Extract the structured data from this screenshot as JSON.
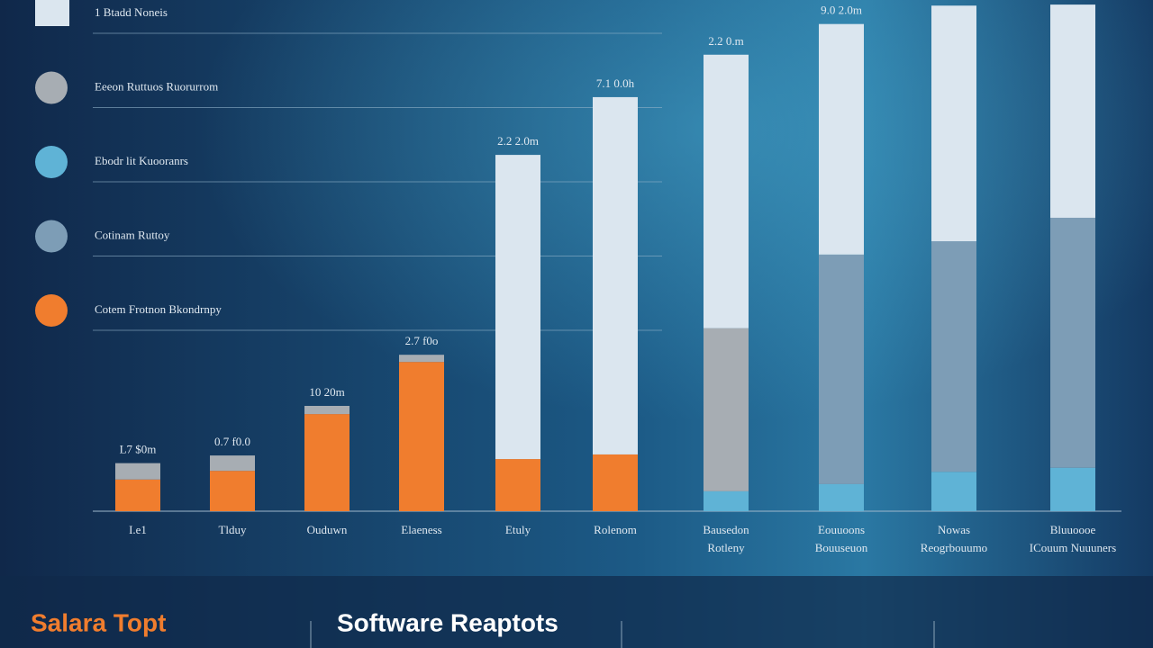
{
  "chart_data": {
    "type": "stacked_bar",
    "title": "Software Reaptots",
    "subtitle": "Salara Topt",
    "categories": [
      [
        "I.e1"
      ],
      [
        "Tlduy"
      ],
      [
        "Ouduwn"
      ],
      [
        "Elaeness"
      ],
      [
        "Etuly"
      ],
      [
        "Rolenom"
      ],
      [
        "Bausedon",
        "Rotleny"
      ],
      [
        "Eouuoons",
        "Bouuseuon"
      ],
      [
        "Nowas",
        "Reogrbouumo"
      ],
      [
        "Bluuoooe",
        "ICouum Nuuuners"
      ]
    ],
    "bar_labels": [
      "L7 $0m",
      "0.7 f0.0",
      "10 20m",
      "2.7 f0o",
      "2.2 2.0m",
      "7.1 0.0h",
      "2.2 0.m",
      "9.0 2.0m",
      null,
      null
    ],
    "series": [
      {
        "name": "Cotem Frotnon Bkondrnpy",
        "color": "#f07d2e",
        "values": [
          6.2,
          7.9,
          19,
          29.2,
          10.2,
          11.1,
          0,
          0,
          0,
          0
        ]
      },
      {
        "name": "Ebodr lit Kuooranrs",
        "color": "#5fb3d6",
        "values": [
          0,
          0,
          0,
          0,
          0,
          0,
          3.9,
          5.3,
          7.7,
          8.5
        ]
      },
      {
        "name": "Eeeon Ruttuos Ruorurrom",
        "color": "#a7adb3",
        "values": [
          3.2,
          3,
          1.6,
          1.4,
          0,
          0,
          31.9,
          0,
          0,
          0
        ]
      },
      {
        "name": "Cotinam Ruttoy",
        "color": "#7d9db6",
        "values": [
          0,
          0,
          0,
          0,
          0,
          0,
          0,
          44.9,
          45.1,
          48.9
        ]
      },
      {
        "name": "1 Btadd Noneis",
        "color": "#dbe6ef",
        "values": [
          0,
          0,
          0,
          0,
          59.5,
          69.9,
          53.5,
          45.1,
          46.1,
          41.7
        ]
      }
    ],
    "legend_order": [
      4,
      2,
      1,
      3,
      0
    ],
    "ylim": [
      0,
      100
    ]
  }
}
